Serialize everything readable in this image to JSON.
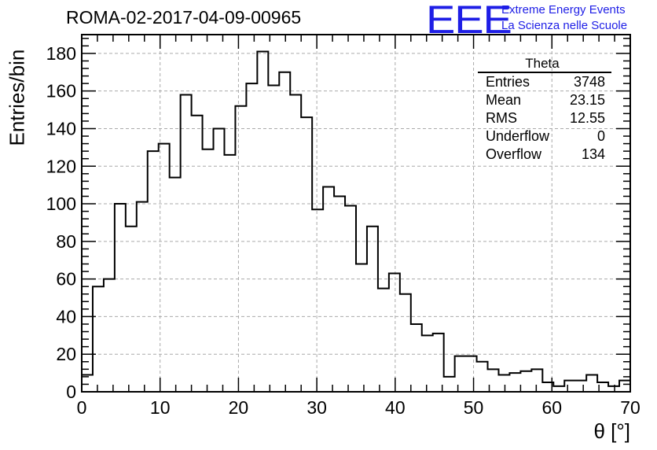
{
  "chart_data": {
    "type": "histogram",
    "title": "ROMA-02-2017-04-09-00965",
    "xlabel": "θ [°]",
    "ylabel": "Entries/bin",
    "xlim": [
      0,
      70
    ],
    "ylim": [
      0,
      190
    ],
    "x_ticks": [
      "0",
      "10",
      "20",
      "30",
      "40",
      "50",
      "60",
      "70"
    ],
    "y_ticks": [
      "0",
      "20",
      "40",
      "60",
      "80",
      "100",
      "120",
      "140",
      "160",
      "180"
    ],
    "grid": true,
    "bin_width": 1.4,
    "values": [
      9,
      56,
      60,
      100,
      88,
      101,
      128,
      132,
      114,
      158,
      147,
      129,
      140,
      126,
      152,
      164,
      181,
      163,
      170,
      158,
      146,
      97,
      109,
      104,
      99,
      68,
      88,
      55,
      63,
      52,
      36,
      30,
      31,
      8,
      19,
      19,
      16,
      12,
      9,
      10,
      11,
      12,
      5,
      3,
      6,
      6,
      9,
      5,
      3,
      6
    ],
    "stats": {
      "name": "Theta",
      "rows": [
        {
          "label": "Entries",
          "value": "3748"
        },
        {
          "label": "Mean",
          "value": "23.15"
        },
        {
          "label": "RMS",
          "value": "12.55"
        },
        {
          "label": "Underflow",
          "value": "0"
        },
        {
          "label": "Overflow",
          "value": "134"
        }
      ]
    }
  },
  "logo": {
    "text": "EEE",
    "line1": "Extreme Energy Events",
    "line2": "La Scienza nelle Scuole",
    "color": "#1e1ee6"
  }
}
